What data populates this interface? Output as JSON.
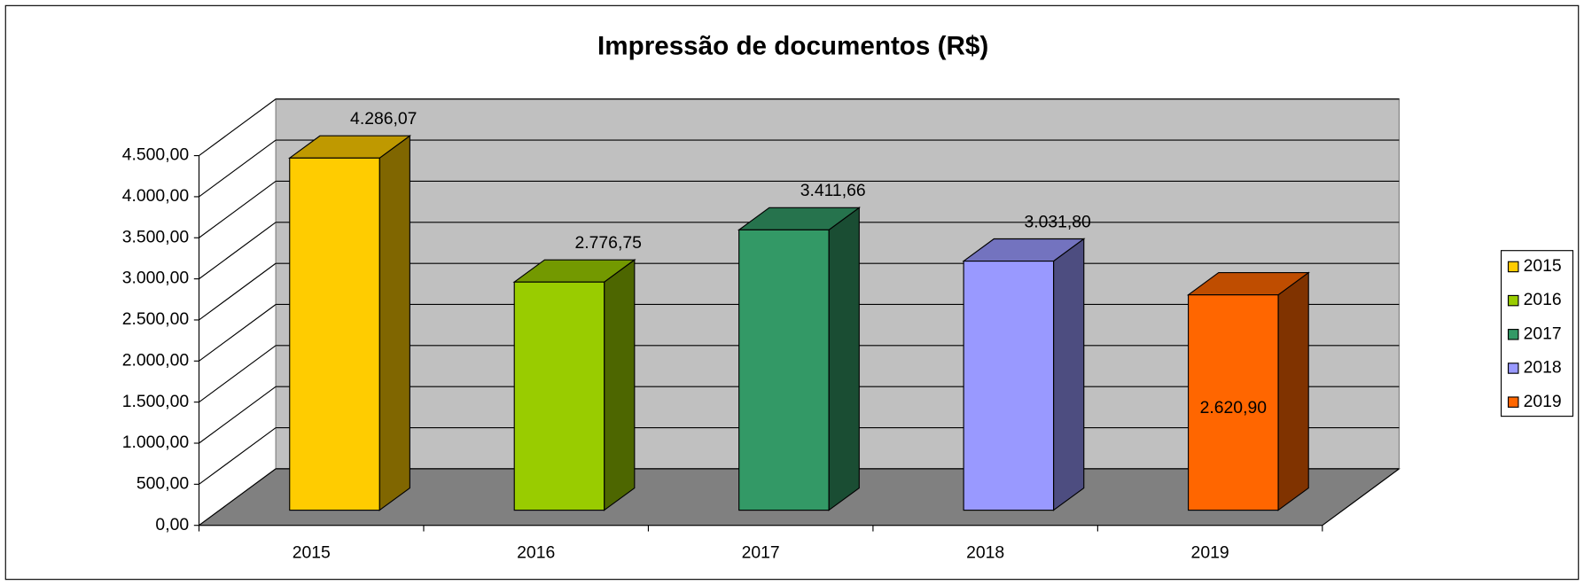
{
  "chart_data": {
    "type": "bar3d",
    "title": "Impressão de documentos (R$)",
    "categories": [
      "2015",
      "2016",
      "2017",
      "2018",
      "2019"
    ],
    "values": [
      4286.07,
      2776.75,
      3411.66,
      3031.8,
      2620.9
    ],
    "value_labels": [
      "4.286,07",
      "2.776,75",
      "3.411,66",
      "3.031,80",
      "2.620,90"
    ],
    "colors": [
      "#ffcc00",
      "#99cc00",
      "#339966",
      "#9999ff",
      "#ff6600"
    ],
    "ylim": [
      0,
      4500
    ],
    "yticks": [
      {
        "value": 0,
        "label": "0,00"
      },
      {
        "value": 500,
        "label": "500,00"
      },
      {
        "value": 1000,
        "label": "1.000,00"
      },
      {
        "value": 1500,
        "label": "1.500,00"
      },
      {
        "value": 2000,
        "label": "2.000,00"
      },
      {
        "value": 2500,
        "label": "2.500,00"
      },
      {
        "value": 3000,
        "label": "3.000,00"
      },
      {
        "value": 3500,
        "label": "3.500,00"
      },
      {
        "value": 4000,
        "label": "4.000,00"
      },
      {
        "value": 4500,
        "label": "4.500,00"
      }
    ],
    "grid": true,
    "legend": "right"
  }
}
